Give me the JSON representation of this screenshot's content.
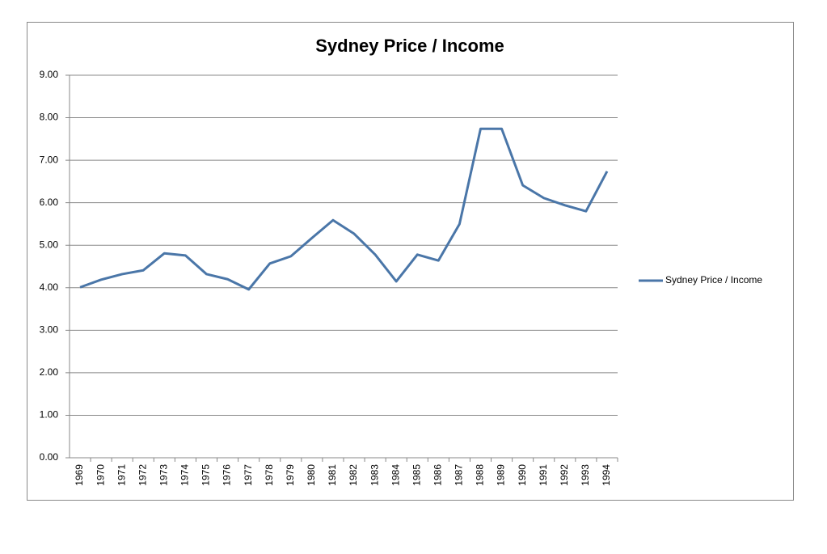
{
  "chart_data": {
    "type": "line",
    "title": "Sydney Price / Income",
    "categories": [
      "1969",
      "1970",
      "1971",
      "1972",
      "1973",
      "1974",
      "1975",
      "1976",
      "1977",
      "1978",
      "1979",
      "1980",
      "1981",
      "1982",
      "1983",
      "1984",
      "1985",
      "1986",
      "1987",
      "1988",
      "1989",
      "1990",
      "1991",
      "1992",
      "1993",
      "1994"
    ],
    "series": [
      {
        "name": "Sydney Price / Income",
        "color": "#4a76a8",
        "values": [
          4.01,
          4.19,
          4.32,
          4.41,
          4.81,
          4.76,
          4.32,
          4.2,
          3.96,
          4.57,
          4.74,
          5.17,
          5.59,
          5.27,
          4.78,
          4.15,
          4.78,
          4.64,
          5.5,
          7.74,
          7.74,
          6.41,
          6.11,
          5.94,
          5.8,
          6.74
        ]
      }
    ],
    "ylim": [
      0,
      9
    ],
    "yticks": [
      {
        "value": 0,
        "label": "0.00"
      },
      {
        "value": 1,
        "label": "1.00"
      },
      {
        "value": 2,
        "label": "2.00"
      },
      {
        "value": 3,
        "label": "3.00"
      },
      {
        "value": 4,
        "label": "4.00"
      },
      {
        "value": 5,
        "label": "5.00"
      },
      {
        "value": 6,
        "label": "6.00"
      },
      {
        "value": 7,
        "label": "7.00"
      },
      {
        "value": 8,
        "label": "8.00"
      },
      {
        "value": 9,
        "label": "9.00"
      }
    ],
    "grid": true,
    "legend": "right"
  }
}
